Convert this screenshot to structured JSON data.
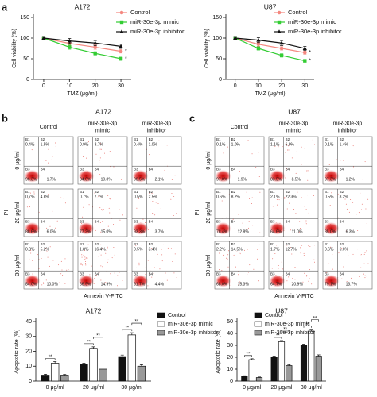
{
  "panel_labels": [
    "a",
    "b",
    "c"
  ],
  "chart_data": [
    {
      "type": "line",
      "title": "A172",
      "x_label": "TMZ (μg/ml)",
      "y_label": "Cell viability (%)",
      "x": [
        0,
        10,
        20,
        30
      ],
      "xlim": [
        -4,
        34
      ],
      "xticks": [
        0,
        10,
        20,
        30
      ],
      "ylim": [
        0,
        150
      ],
      "yticks": [
        0,
        50,
        100,
        150
      ],
      "series": [
        {
          "name": "Control",
          "color": "#f4877f",
          "marker": "circle",
          "values": [
            100,
            87,
            78,
            68
          ],
          "errors": [
            4,
            5,
            5,
            4
          ],
          "end_label": "*"
        },
        {
          "name": "miR-30e-3p mimic",
          "color": "#33cc33",
          "marker": "square",
          "values": [
            100,
            78,
            63,
            50
          ],
          "errors": [
            4,
            5,
            4,
            4
          ],
          "end_label": "*"
        },
        {
          "name": "miR-30e-3p inhibitor",
          "color": "#111111",
          "marker": "triangle",
          "values": [
            100,
            93,
            88,
            80
          ],
          "errors": [
            4,
            6,
            6,
            5
          ]
        }
      ]
    },
    {
      "type": "line",
      "title": "U87",
      "x_label": "TMZ (μg/ml)",
      "y_label": "Cell viability (%)",
      "x": [
        0,
        10,
        20,
        30
      ],
      "xlim": [
        -4,
        34
      ],
      "xticks": [
        0,
        10,
        20,
        30
      ],
      "ylim": [
        0,
        150
      ],
      "yticks": [
        0,
        50,
        100,
        150
      ],
      "series": [
        {
          "name": "Control",
          "color": "#f4877f",
          "marker": "circle",
          "values": [
            100,
            85,
            75,
            65
          ],
          "errors": [
            4,
            5,
            4,
            4
          ],
          "end_label": "*"
        },
        {
          "name": "miR-30e-3p mimic",
          "color": "#33cc33",
          "marker": "square",
          "values": [
            100,
            75,
            58,
            45
          ],
          "errors": [
            4,
            4,
            4,
            3
          ],
          "end_label": "*"
        },
        {
          "name": "miR-30e-3p inhibitor",
          "color": "#111111",
          "marker": "triangle",
          "values": [
            100,
            95,
            88,
            75
          ],
          "errors": [
            4,
            6,
            6,
            5
          ]
        }
      ]
    },
    {
      "type": "bar",
      "title": "A172",
      "y_label": "Apoptotic rate (%)",
      "categories": [
        "0 μg/ml",
        "20 μg/ml",
        "30 μg/ml"
      ],
      "ylim": [
        0,
        40
      ],
      "yticks": [
        0,
        10,
        20,
        30,
        40
      ],
      "series": [
        {
          "name": "Control",
          "color": "#111111",
          "values": [
            4,
            11,
            16.5
          ],
          "errors": [
            0.6,
            1,
            1
          ]
        },
        {
          "name": "miR-30e-3p mimic",
          "color": "#ffffff",
          "values": [
            12,
            22,
            31
          ],
          "errors": [
            1,
            1,
            1.5
          ]
        },
        {
          "name": "miR-30e-3p inhibitor",
          "color": "#999999",
          "values": [
            4,
            8,
            10
          ],
          "errors": [
            0.5,
            0.8,
            1
          ]
        }
      ],
      "brackets": [
        {
          "category": 0,
          "from": "Control",
          "to": "miR-30e-3p mimic",
          "label": "**"
        },
        {
          "category": 1,
          "from": "Control",
          "to": "miR-30e-3p mimic",
          "label": "**"
        },
        {
          "category": 1,
          "from": "miR-30e-3p mimic",
          "to": "miR-30e-3p inhibitor",
          "label": "**"
        },
        {
          "category": 2,
          "from": "Control",
          "to": "miR-30e-3p mimic",
          "label": "**"
        },
        {
          "category": 2,
          "from": "miR-30e-3p mimic",
          "to": "miR-30e-3p inhibitor",
          "label": "**"
        }
      ]
    },
    {
      "type": "bar",
      "title": "U87",
      "y_label": "Apoptotic rate (%)",
      "categories": [
        "0 μg/ml",
        "20 μg/ml",
        "30 μg/ml"
      ],
      "ylim": [
        0,
        50
      ],
      "yticks": [
        0,
        10,
        20,
        30,
        40,
        50
      ],
      "series": [
        {
          "name": "Control",
          "color": "#111111",
          "values": [
            4,
            20,
            30
          ],
          "errors": [
            0.5,
            1,
            1
          ]
        },
        {
          "name": "miR-30e-3p mimic",
          "color": "#ffffff",
          "values": [
            18,
            33,
            42
          ],
          "errors": [
            0.8,
            1,
            1.5
          ]
        },
        {
          "name": "miR-30e-3p inhibitor",
          "color": "#999999",
          "values": [
            3,
            13,
            21
          ],
          "errors": [
            0.4,
            0.7,
            1
          ]
        }
      ],
      "brackets": [
        {
          "category": 0,
          "from": "Control",
          "to": "miR-30e-3p mimic",
          "label": "**"
        },
        {
          "category": 1,
          "from": "Control",
          "to": "miR-30e-3p mimic",
          "label": "**"
        },
        {
          "category": 1,
          "from": "miR-30e-3p mimic",
          "to": "miR-30e-3p inhibitor",
          "label": "**"
        },
        {
          "category": 2,
          "from": "Control",
          "to": "miR-30e-3p mimic",
          "label": "**"
        },
        {
          "category": 2,
          "from": "miR-30e-3p mimic",
          "to": "miR-30e-3p inhibitor",
          "label": "**"
        }
      ]
    }
  ],
  "flow_panels": [
    {
      "title": "A172",
      "columns": [
        [
          "Control"
        ],
        [
          "miR-30e-3p",
          "mimic"
        ],
        [
          "miR-30e-3p",
          "inhibitor"
        ]
      ],
      "rows": [
        "0 μg/ml",
        "20 μg/ml",
        "30 μg/ml"
      ],
      "y_label": "PI",
      "x_label": "Annexin V-FITC",
      "quadrant_names": [
        "B1",
        "B2",
        "B3",
        "B4"
      ],
      "plots": [
        [
          [
            "0.4%",
            "1.5%",
            "96.3%",
            "1.7%"
          ],
          [
            "0.9%",
            "3.7%",
            "84.6%",
            "10.8%"
          ],
          [
            "0.4%",
            "1.0%",
            "96.5%",
            "2.1%"
          ]
        ],
        [
          [
            "0.7%",
            "4.8%",
            "88.6%",
            "6.0%"
          ],
          [
            "0.7%",
            "7.1%",
            "77.2%",
            "15.0%"
          ],
          [
            "0.5%",
            "2.5%",
            "93.3%",
            "3.7%"
          ]
        ],
        [
          [
            "0.8%",
            "5.2%",
            "84.0%",
            "10.0%"
          ],
          [
            "1.8%",
            "16.4%",
            "66.9%",
            "14.9%"
          ],
          [
            "0.5%",
            "3.4%",
            "91.7%",
            "4.4%"
          ]
        ]
      ]
    },
    {
      "title": "U87",
      "columns": [
        [
          "Control"
        ],
        [
          "miR-30e-3p",
          "mimic"
        ],
        [
          "miR-30e-3p",
          "inhibitor"
        ]
      ],
      "rows": [
        "0 μg/ml",
        "20 μg/ml",
        "30 μg/ml"
      ],
      "y_label": "PI",
      "x_label": "Annexin V-FITC",
      "quadrant_names": [
        "B1",
        "B2",
        "B3",
        "B4"
      ],
      "plots": [
        [
          [
            "0.1%",
            "1.0%",
            "97.0%",
            "1.9%"
          ],
          [
            "1.1%",
            "6.9%",
            "83.5%",
            "8.5%"
          ],
          [
            "0.1%",
            "1.4%",
            "97.3%",
            "1.2%"
          ]
        ],
        [
          [
            "0.6%",
            "8.2%",
            "78.4%",
            "12.8%"
          ],
          [
            "2.1%",
            "22.3%",
            "64.6%",
            "11.0%"
          ],
          [
            "0.5%",
            "8.2%",
            "85.0%",
            "6.3%"
          ]
        ],
        [
          [
            "2.2%",
            "14.5%",
            "68.0%",
            "15.3%"
          ],
          [
            "1.7%",
            "12.7%",
            "64.7%",
            "20.9%"
          ],
          [
            "0.6%",
            "6.6%",
            "79.1%",
            "13.7%"
          ]
        ]
      ]
    }
  ]
}
